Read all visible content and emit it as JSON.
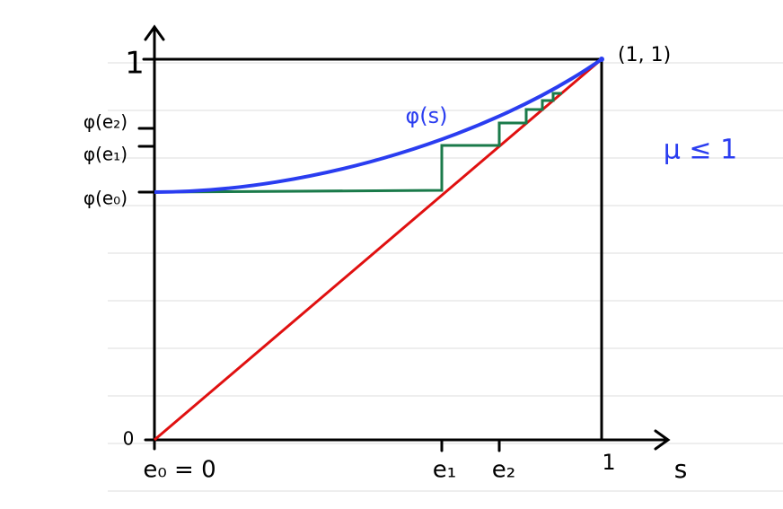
{
  "y_axis": {
    "top_label": "1",
    "origin_label": "0",
    "labels": [
      "φ(e₂)",
      "φ(e₁)",
      "φ(e₀)"
    ]
  },
  "x_axis": {
    "labels": [
      "e₀ = 0",
      "e₁",
      "e₂"
    ],
    "end_label": "1",
    "axis_name": "s"
  },
  "curve_label": "φ(s)",
  "corner_label": "(1, 1)",
  "condition": "μ ≤ 1"
}
